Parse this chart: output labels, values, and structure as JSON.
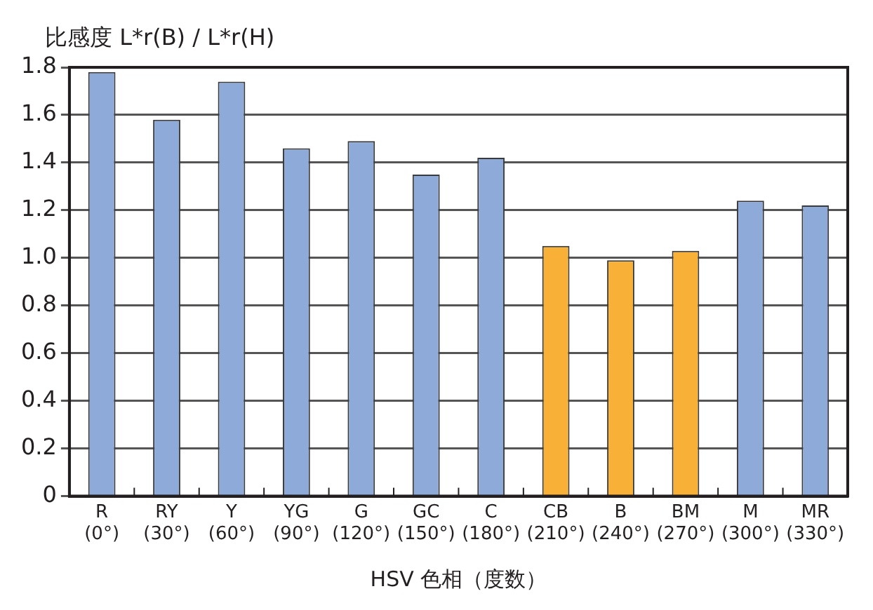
{
  "chart_data": {
    "type": "bar",
    "ylabel": "比感度 L*r(B) / L*r(H)",
    "xlabel": "HSV 色相（度数）",
    "categories": [
      "R\n(0°)",
      "RY\n(30°)",
      "Y\n(60°)",
      "YG\n(90°)",
      "G\n(120°)",
      "GC\n(150°)",
      "C\n(180°)",
      "CB\n(210°)",
      "B\n(240°)",
      "BM\n(270°)",
      "M\n(300°)",
      "MR\n(330°)"
    ],
    "values": [
      1.78,
      1.58,
      1.74,
      1.46,
      1.49,
      1.35,
      1.42,
      1.05,
      0.99,
      1.03,
      1.24,
      1.22
    ],
    "colors": [
      "#8eaad8",
      "#8eaad8",
      "#8eaad8",
      "#8eaad8",
      "#8eaad8",
      "#8eaad8",
      "#8eaad8",
      "#f9b036",
      "#f9b036",
      "#f9b036",
      "#8eaad8",
      "#8eaad8"
    ],
    "ylim": [
      0,
      1.8
    ],
    "yticks": [
      0,
      0.2,
      0.4,
      0.6,
      0.8,
      {
        "value": 1,
        "label": "1.0"
      },
      1.2,
      1.4,
      1.6,
      1.8
    ],
    "grid": "y",
    "legend": false
  }
}
